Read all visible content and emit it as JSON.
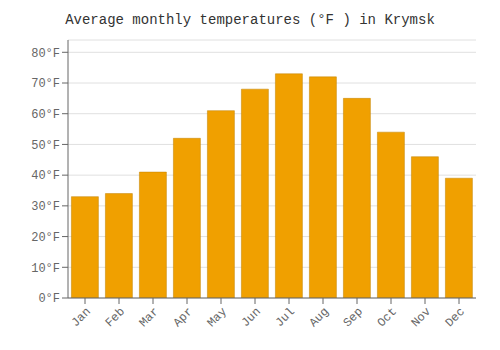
{
  "chart_data": {
    "type": "bar",
    "title": "Average monthly temperatures (°F ) in Krymsk",
    "categories": [
      "Jan",
      "Feb",
      "Mar",
      "Apr",
      "May",
      "Jun",
      "Jul",
      "Aug",
      "Sep",
      "Oct",
      "Nov",
      "Dec"
    ],
    "values": [
      33,
      34,
      41,
      52,
      61,
      68,
      73,
      72,
      65,
      54,
      46,
      39
    ],
    "color": "#F0A000",
    "ylim": [
      0,
      84
    ],
    "yticks": [
      {
        "value": 0,
        "label": "0°F"
      },
      {
        "value": 10,
        "label": "10°F"
      },
      {
        "value": 20,
        "label": "20°F"
      },
      {
        "value": 30,
        "label": "30°F"
      },
      {
        "value": 40,
        "label": "40°F"
      },
      {
        "value": 50,
        "label": "50°F"
      },
      {
        "value": 60,
        "label": "60°F"
      },
      {
        "value": 70,
        "label": "70°F"
      },
      {
        "value": 80,
        "label": "80°F"
      }
    ],
    "grid": true
  }
}
